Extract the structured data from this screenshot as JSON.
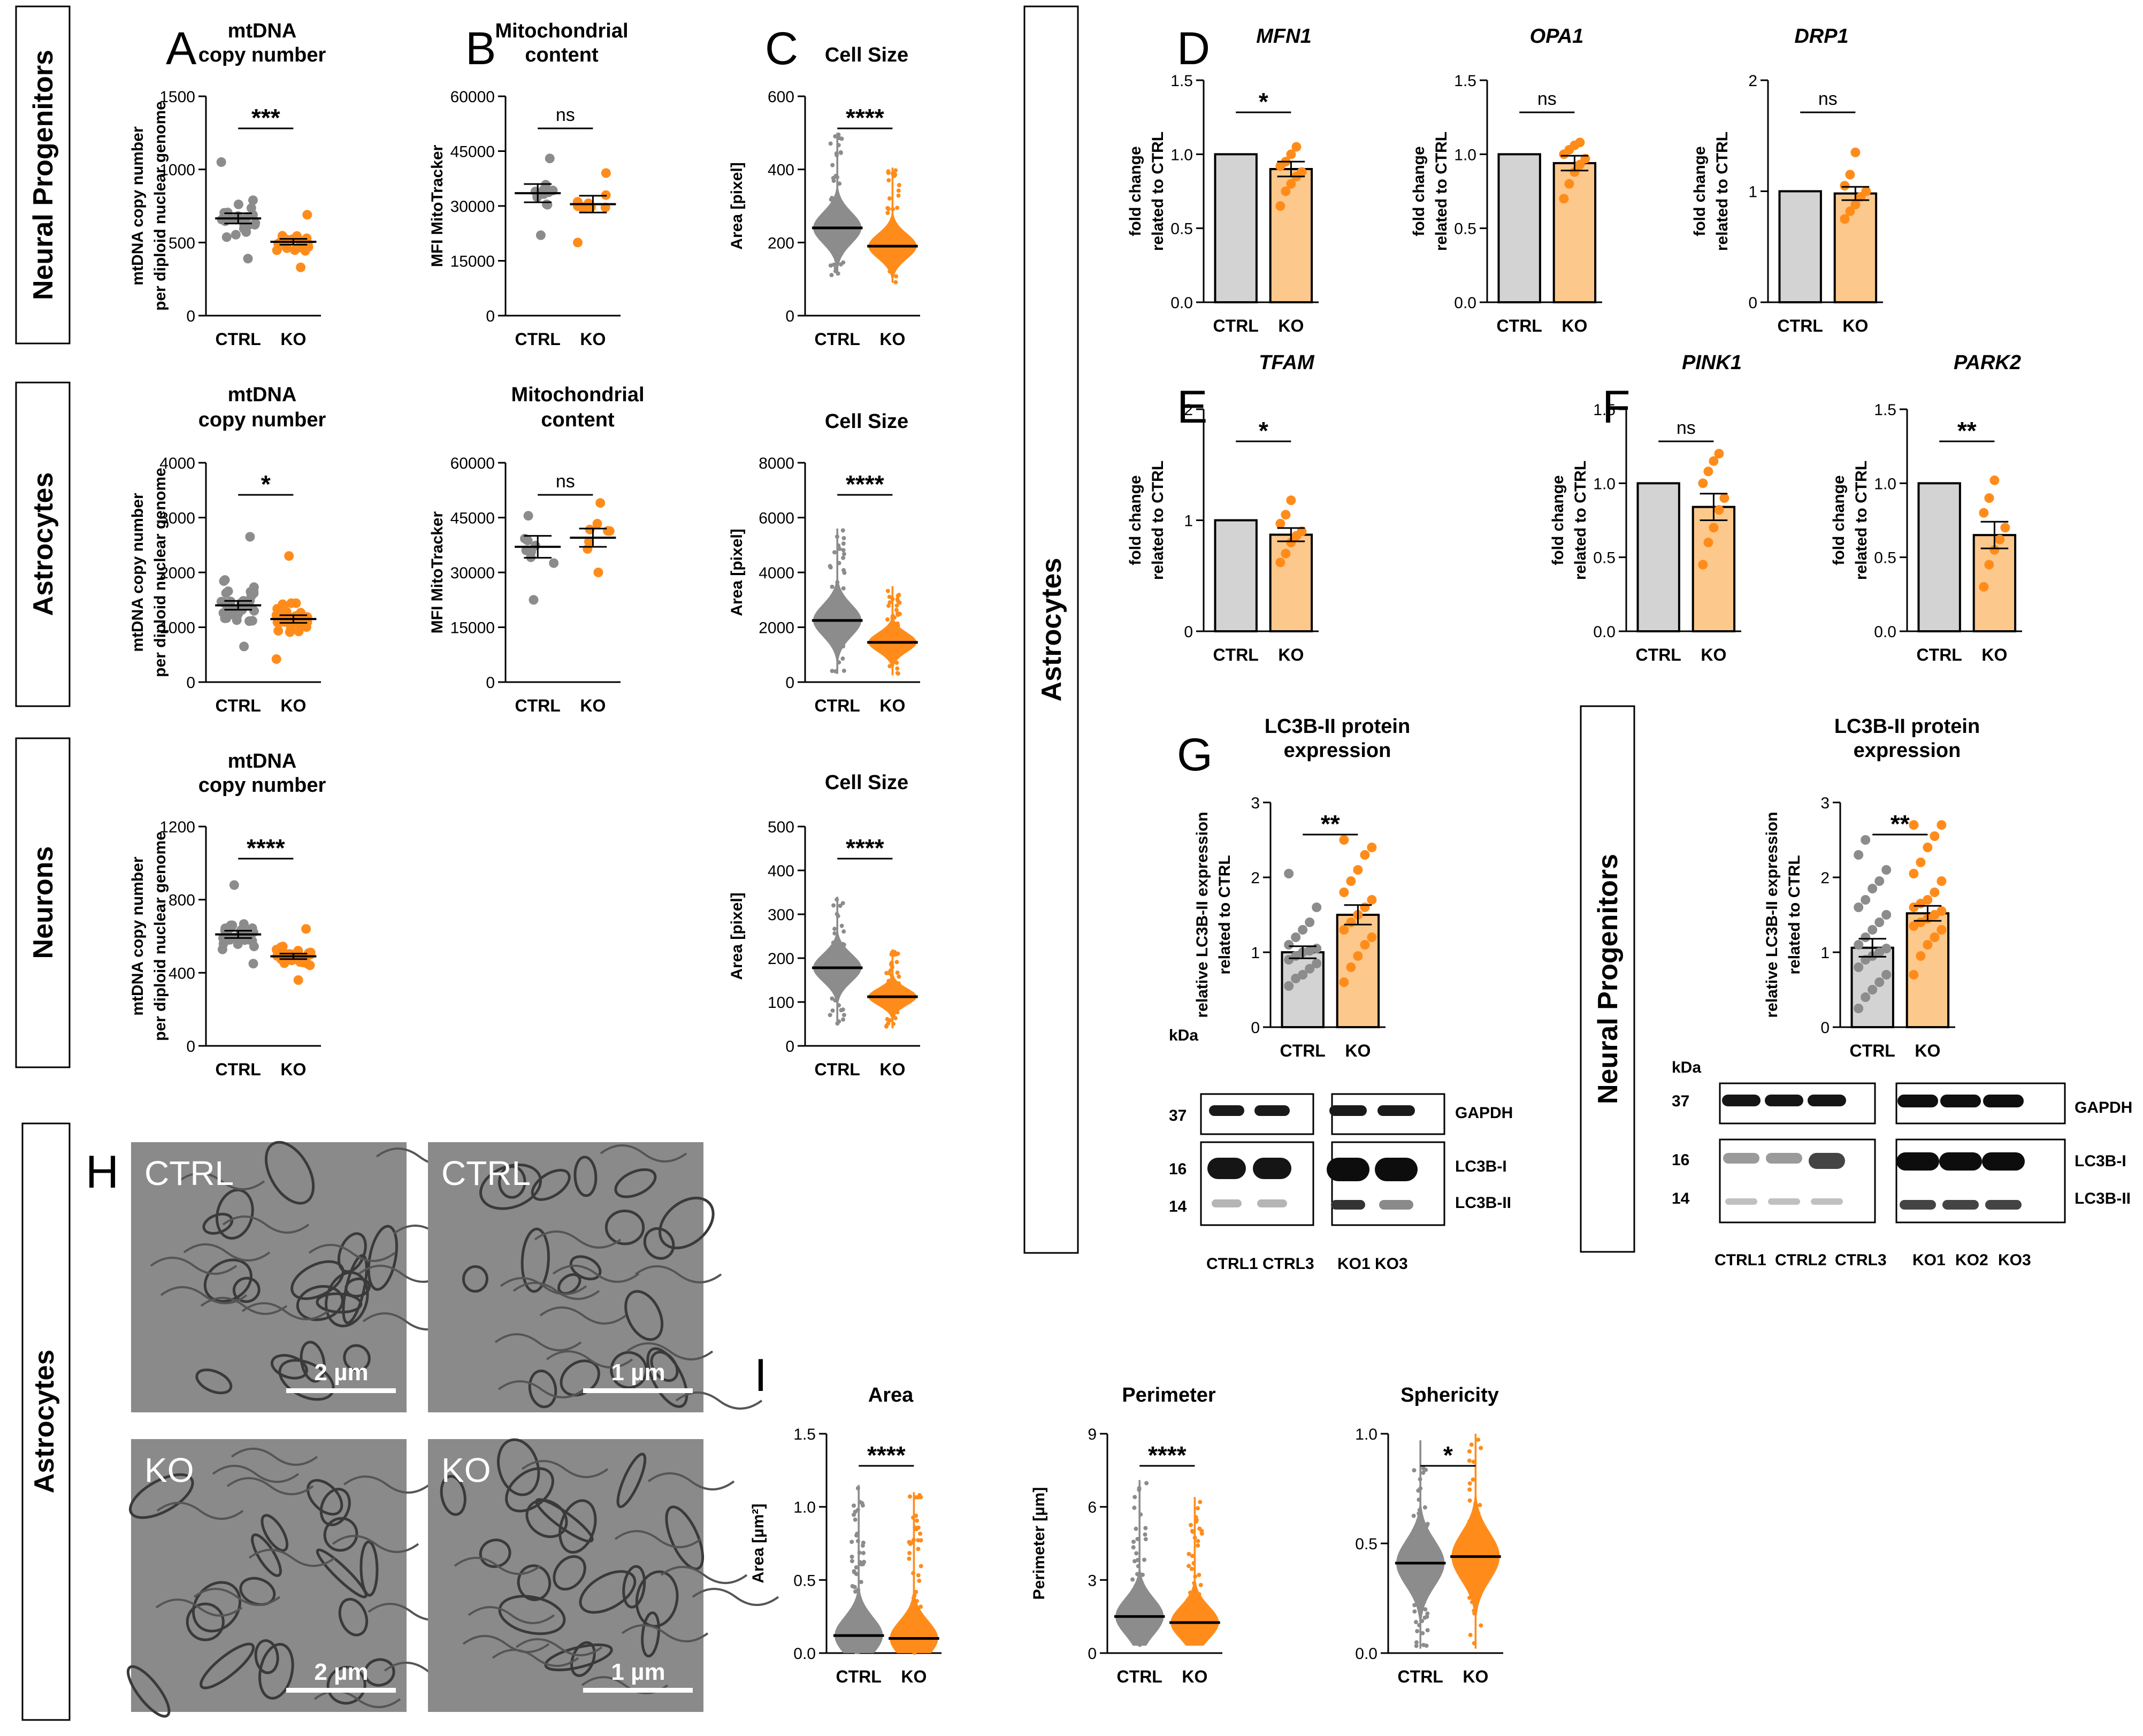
{
  "colors": {
    "ctrl": "#8c8c8c",
    "ko": "#ff8c1a",
    "bar_ctrl": "#d3d3d3",
    "bar_ko": "#fcc88c",
    "frame": "#000000"
  },
  "rows": [
    "Neural Progenitors",
    "Astrocytes",
    "Neurons"
  ],
  "side_labels": {
    "astro_panel": "Astrocytes",
    "np_blot": "Neural Progenitors",
    "h": "Astrocytes"
  },
  "letters": [
    "A",
    "B",
    "C",
    "D",
    "E",
    "F",
    "G",
    "H",
    "I"
  ],
  "em": {
    "tiles": [
      {
        "label": "CTRL",
        "scale": "2 µm"
      },
      {
        "label": "CTRL",
        "scale": "1 µm"
      },
      {
        "label": "KO",
        "scale": "2 µm"
      },
      {
        "label": "KO",
        "scale": "1 µm"
      }
    ]
  },
  "blots": [
    {
      "kda_title": "kDa",
      "marks": [
        "37",
        "16",
        "14"
      ],
      "bands": [
        "GAPDH",
        "LC3B-I",
        "LC3B-II"
      ],
      "lanes": [
        "CTRL1 CTRL3",
        "KO1 KO3"
      ]
    },
    {
      "kda_title": "kDa",
      "marks": [
        "37",
        "16",
        "14"
      ],
      "bands": [
        "GAPDH",
        "LC3B-I",
        "LC3B-II"
      ],
      "lanes": [
        "CTRL1",
        "CTRL2",
        "CTRL3",
        "KO1",
        "KO2",
        "KO3"
      ]
    }
  ],
  "chart_data": [
    {
      "id": "A1",
      "type": "scatter",
      "title": [
        "mtDNA",
        "copy number"
      ],
      "ylabel": [
        "mtDNA copy number",
        "per diploid nuclear genome"
      ],
      "categories": [
        "CTRL",
        "KO"
      ],
      "yticks": [
        "0",
        "500",
        "1000",
        "1500"
      ],
      "ylim": [
        0,
        1500
      ],
      "means": [
        665,
        505
      ],
      "sem": [
        35,
        20
      ],
      "n": [
        28,
        28
      ],
      "spread": [
        [
          390,
          1050
        ],
        [
          330,
          690
        ]
      ],
      "sig": "***"
    },
    {
      "id": "B1",
      "type": "scatter",
      "title": [
        "Mitochondrial",
        "content"
      ],
      "ylabel": [
        "MFI MitoTracker"
      ],
      "categories": [
        "CTRL",
        "KO"
      ],
      "yticks": [
        "0",
        "15000",
        "30000",
        "45000",
        "60000"
      ],
      "ylim": [
        0,
        60000
      ],
      "means": [
        33500,
        30500
      ],
      "sem": [
        2500,
        2300
      ],
      "n": [
        12,
        12
      ],
      "spread": [
        [
          22000,
          43000
        ],
        [
          20000,
          39000
        ]
      ],
      "sig": "ns"
    },
    {
      "id": "C1",
      "type": "violin-scatter",
      "title": [
        "Cell Size"
      ],
      "ylabel": [
        "Area [pixel]"
      ],
      "categories": [
        "CTRL",
        "KO"
      ],
      "yticks": [
        "0",
        "200",
        "400",
        "600"
      ],
      "ylim": [
        0,
        600
      ],
      "means": [
        240,
        190
      ],
      "sem": [
        0,
        0
      ],
      "range": [
        [
          110,
          500
        ],
        [
          90,
          405
        ]
      ],
      "sig": "****"
    },
    {
      "id": "A2",
      "type": "scatter",
      "title": [
        "mtDNA",
        "copy number"
      ],
      "ylabel": [
        "mtDNA copy number",
        "per diploid nuclear genome"
      ],
      "categories": [
        "CTRL",
        "KO"
      ],
      "yticks": [
        "0",
        "1000",
        "2000",
        "3000",
        "4000"
      ],
      "ylim": [
        0,
        4000
      ],
      "means": [
        1400,
        1150
      ],
      "sem": [
        80,
        70
      ],
      "n": [
        38,
        38
      ],
      "spread": [
        [
          650,
          2650
        ],
        [
          420,
          2300
        ]
      ],
      "sig": "*"
    },
    {
      "id": "B2",
      "type": "scatter",
      "title": [
        "Mitochondrial",
        "content"
      ],
      "ylabel": [
        "MFI MitoTracker"
      ],
      "categories": [
        "CTRL",
        "KO"
      ],
      "yticks": [
        "0",
        "15000",
        "30000",
        "45000",
        "60000"
      ],
      "ylim": [
        0,
        60000
      ],
      "means": [
        37000,
        39500
      ],
      "sem": [
        3000,
        2500
      ],
      "n": [
        10,
        8
      ],
      "spread": [
        [
          22500,
          45500
        ],
        [
          30000,
          49000
        ]
      ],
      "sig": "ns"
    },
    {
      "id": "C2",
      "type": "violin-scatter",
      "title": [
        "Cell Size"
      ],
      "ylabel": [
        "Area [pixel]"
      ],
      "categories": [
        "CTRL",
        "KO"
      ],
      "yticks": [
        "0",
        "2000",
        "4000",
        "6000",
        "8000"
      ],
      "ylim": [
        0,
        8000
      ],
      "means": [
        2250,
        1450
      ],
      "sem": [
        0,
        0
      ],
      "range": [
        [
          300,
          5600
        ],
        [
          250,
          3500
        ]
      ],
      "sig": "****"
    },
    {
      "id": "A3",
      "type": "scatter",
      "title": [
        "mtDNA",
        "copy number"
      ],
      "ylabel": [
        "mtDNA copy number",
        "per diploid nuclear genome"
      ],
      "categories": [
        "CTRL",
        "KO"
      ],
      "yticks": [
        "0",
        "400",
        "800",
        "1200"
      ],
      "ylim": [
        0,
        1200
      ],
      "means": [
        610,
        490
      ],
      "sem": [
        20,
        15
      ],
      "n": [
        30,
        34
      ],
      "spread": [
        [
          450,
          880
        ],
        [
          360,
          640
        ]
      ],
      "sig": "****"
    },
    {
      "id": "C3",
      "type": "violin-scatter",
      "title": [
        "Cell Size"
      ],
      "ylabel": [
        "Area [pixel]"
      ],
      "categories": [
        "CTRL",
        "KO"
      ],
      "yticks": [
        "0",
        "100",
        "200",
        "300",
        "400",
        "500"
      ],
      "ylim": [
        0,
        500
      ],
      "means": [
        178,
        112
      ],
      "sem": [
        0,
        0
      ],
      "range": [
        [
          50,
          340
        ],
        [
          40,
          220
        ]
      ],
      "sig": "****"
    },
    {
      "id": "D1",
      "type": "bar",
      "title": [
        "MFN1"
      ],
      "italic": true,
      "ylabel": [
        "fold change",
        "related to CTRL"
      ],
      "categories": [
        "CTRL",
        "KO"
      ],
      "yticks": [
        "0.0",
        "0.5",
        "1.0",
        "1.5"
      ],
      "ylim": [
        0,
        1.5
      ],
      "values": [
        1.0,
        0.9
      ],
      "sem": [
        0,
        0.05
      ],
      "dots": [
        [],
        [
          0.65,
          0.75,
          0.8,
          0.85,
          0.88,
          0.92,
          0.95,
          1.0,
          1.05
        ]
      ],
      "sig": "*"
    },
    {
      "id": "D2",
      "type": "bar",
      "title": [
        "OPA1"
      ],
      "italic": true,
      "ylabel": [
        "fold change",
        "related to CTRL"
      ],
      "categories": [
        "CTRL",
        "KO"
      ],
      "yticks": [
        "0.0",
        "0.5",
        "1.0",
        "1.5"
      ],
      "ylim": [
        0,
        1.5
      ],
      "values": [
        1.0,
        0.94
      ],
      "sem": [
        0,
        0.05
      ],
      "dots": [
        [],
        [
          0.7,
          0.8,
          0.88,
          0.93,
          0.97,
          1.0,
          1.03,
          1.06,
          1.08
        ]
      ],
      "sig": "ns"
    },
    {
      "id": "D3",
      "type": "bar",
      "title": [
        "DRP1"
      ],
      "italic": true,
      "ylabel": [
        "fold change",
        "related to CTRL"
      ],
      "categories": [
        "CTRL",
        "KO"
      ],
      "yticks": [
        "0",
        "1",
        "2"
      ],
      "ylim": [
        0,
        2
      ],
      "values": [
        1.0,
        0.98
      ],
      "sem": [
        0,
        0.06
      ],
      "dots": [
        [],
        [
          0.75,
          0.82,
          0.88,
          0.95,
          1.0,
          1.05,
          1.15,
          1.35
        ]
      ],
      "sig": "ns"
    },
    {
      "id": "E1",
      "type": "bar",
      "title": [
        "TFAM"
      ],
      "italic": true,
      "ylabel": [
        "fold change",
        "related to CTRL"
      ],
      "categories": [
        "CTRL",
        "KO"
      ],
      "yticks": [
        "0",
        "1",
        "2"
      ],
      "ylim": [
        0,
        2
      ],
      "values": [
        1.0,
        0.87
      ],
      "sem": [
        0,
        0.06
      ],
      "dots": [
        [],
        [
          0.62,
          0.7,
          0.8,
          0.86,
          0.9,
          0.97,
          1.05,
          1.18
        ]
      ],
      "sig": "*"
    },
    {
      "id": "F1",
      "type": "bar",
      "title": [
        "PINK1"
      ],
      "italic": true,
      "ylabel": [
        "fold change",
        "related to CTRL"
      ],
      "categories": [
        "CTRL",
        "KO"
      ],
      "yticks": [
        "0.0",
        "0.5",
        "1.0",
        "1.5"
      ],
      "ylim": [
        0,
        1.5
      ],
      "values": [
        1.0,
        0.84
      ],
      "sem": [
        0,
        0.09
      ],
      "dots": [
        [],
        [
          0.45,
          0.6,
          0.7,
          0.82,
          0.9,
          1.0,
          1.08,
          1.15,
          1.2
        ]
      ],
      "sig": "ns"
    },
    {
      "id": "F2",
      "type": "bar",
      "title": [
        "PARK2"
      ],
      "italic": true,
      "ylabel": [
        "fold change",
        "related to CTRL"
      ],
      "categories": [
        "CTRL",
        "KO"
      ],
      "yticks": [
        "0.0",
        "0.5",
        "1.0",
        "1.5"
      ],
      "ylim": [
        0,
        1.5
      ],
      "values": [
        1.0,
        0.65
      ],
      "sem": [
        0,
        0.09
      ],
      "dots": [
        [],
        [
          0.3,
          0.45,
          0.55,
          0.62,
          0.7,
          0.8,
          0.9,
          1.02
        ]
      ],
      "sig": "**"
    },
    {
      "id": "G1",
      "type": "bar",
      "title": [
        "LC3B-II protein",
        "expression"
      ],
      "italic": false,
      "ylabel": [
        "relative LC3B-II expression",
        "related to CTRL"
      ],
      "categories": [
        "CTRL",
        "KO"
      ],
      "yticks": [
        "0",
        "1",
        "2",
        "3"
      ],
      "ylim": [
        0,
        3
      ],
      "values": [
        1.0,
        1.5
      ],
      "sem": [
        0.08,
        0.13
      ],
      "dots": [
        [
          0.55,
          0.65,
          0.7,
          0.78,
          0.85,
          0.9,
          0.95,
          1.0,
          1.02,
          1.05,
          1.1,
          1.2,
          1.3,
          1.4,
          1.6,
          2.05
        ],
        [
          0.6,
          0.8,
          0.95,
          1.1,
          1.2,
          1.3,
          1.4,
          1.5,
          1.6,
          1.7,
          1.8,
          1.95,
          2.1,
          2.3,
          2.4,
          2.5
        ]
      ],
      "sig": "**"
    },
    {
      "id": "G2",
      "type": "bar",
      "title": [
        "LC3B-II protein",
        "expression"
      ],
      "italic": false,
      "ylabel": [
        "relative LC3B-II expression",
        "related to CTRL"
      ],
      "categories": [
        "CTRL",
        "KO"
      ],
      "yticks": [
        "0",
        "1",
        "2",
        "3"
      ],
      "ylim": [
        0,
        3
      ],
      "values": [
        1.06,
        1.52
      ],
      "sem": [
        0.12,
        0.1
      ],
      "dots": [
        [
          0.25,
          0.4,
          0.5,
          0.6,
          0.7,
          0.8,
          0.9,
          0.95,
          1.0,
          1.05,
          1.1,
          1.2,
          1.3,
          1.4,
          1.5,
          1.6,
          1.7,
          1.85,
          1.95,
          2.1,
          2.3,
          2.5
        ],
        [
          0.7,
          0.95,
          1.1,
          1.2,
          1.3,
          1.35,
          1.4,
          1.45,
          1.5,
          1.55,
          1.6,
          1.65,
          1.7,
          1.8,
          1.95,
          2.05,
          2.2,
          2.4,
          2.55,
          2.7,
          2.7
        ]
      ],
      "sig": "**"
    },
    {
      "id": "I1",
      "type": "violin-scatter",
      "title": [
        "Area"
      ],
      "ylabel": [
        "Area [µm²]"
      ],
      "categories": [
        "CTRL",
        "KO"
      ],
      "yticks": [
        "0.0",
        "0.5",
        "1.0",
        "1.5"
      ],
      "ylim": [
        0,
        1.5
      ],
      "means": [
        0.12,
        0.1
      ],
      "sem": [
        0,
        0
      ],
      "range": [
        [
          0.0,
          1.15
        ],
        [
          0.0,
          1.1
        ]
      ],
      "sig": "****"
    },
    {
      "id": "I2",
      "type": "violin-scatter",
      "title": [
        "Perimeter"
      ],
      "ylabel": [
        "Perimeter [µm]"
      ],
      "categories": [
        "CTRL",
        "KO"
      ],
      "yticks": [
        "0",
        "3",
        "6",
        "9"
      ],
      "ylim": [
        0,
        9
      ],
      "means": [
        1.5,
        1.25
      ],
      "sem": [
        0,
        0
      ],
      "range": [
        [
          0.3,
          7.1
        ],
        [
          0.3,
          6.4
        ]
      ],
      "sig": "****"
    },
    {
      "id": "I3",
      "type": "violin-scatter",
      "title": [
        "Sphericity"
      ],
      "ylabel": [],
      "categories": [
        "CTRL",
        "KO"
      ],
      "yticks": [
        "0.0",
        "0.5",
        "1.0"
      ],
      "ylim": [
        0,
        1.0
      ],
      "means": [
        0.41,
        0.44
      ],
      "sem": [
        0,
        0
      ],
      "range": [
        [
          0.02,
          0.97
        ],
        [
          0.02,
          1.0
        ]
      ],
      "sig": "*"
    }
  ]
}
